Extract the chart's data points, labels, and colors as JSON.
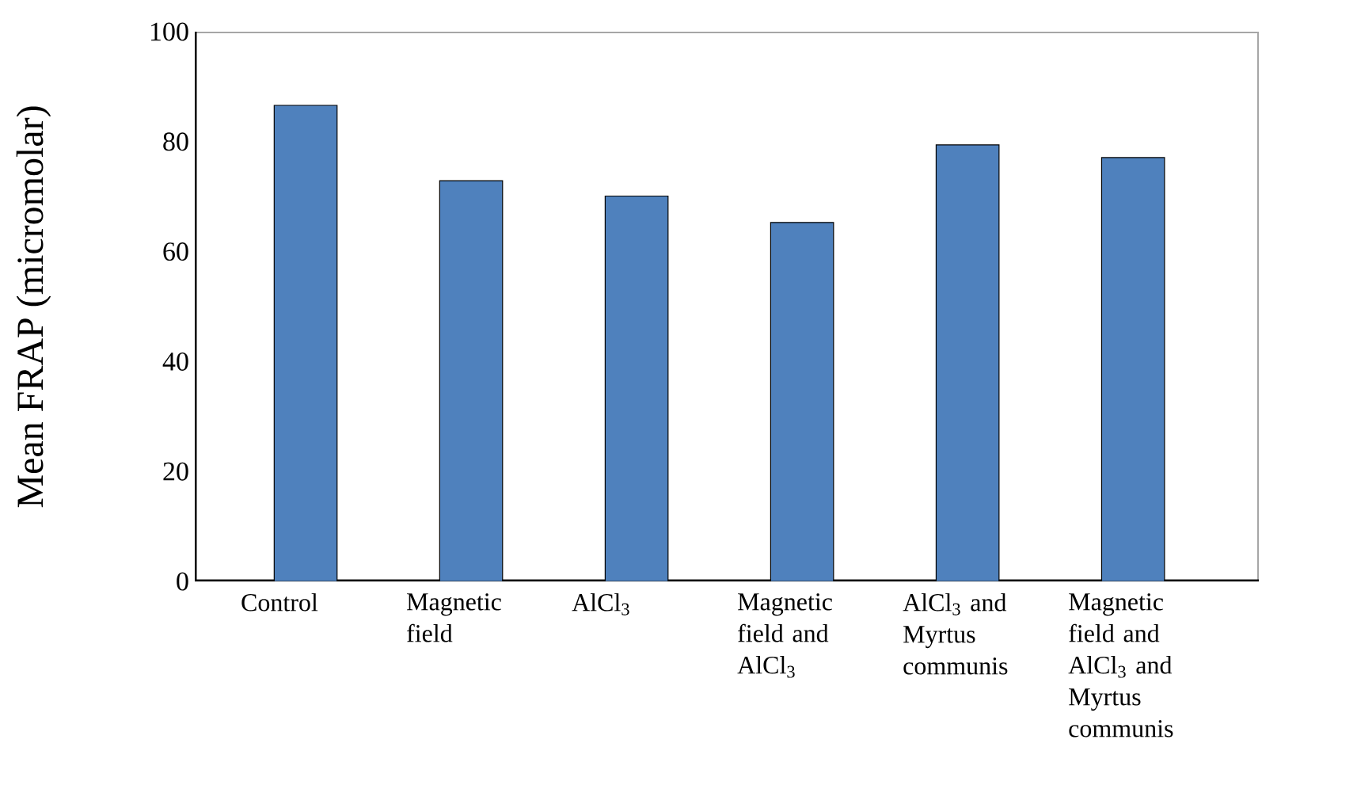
{
  "chart_data": {
    "type": "bar",
    "ylabel": "Mean FRAP (micromolar)",
    "categories": [
      "Control",
      "Magnetic field",
      "AlCl$_{3}$",
      "Magnetic field and AlCl$_{3}$",
      "AlCl$_{3}$ and Myrtus communis",
      "Magnetic field and AlCl$_{3}$ and Myrtus communis"
    ],
    "values": [
      86.6,
      72.9,
      70.1,
      65.3,
      79.4,
      77.1
    ],
    "color": "#4f81bd",
    "ylim": [
      0,
      100
    ],
    "yticks": [
      0,
      20,
      40,
      60,
      80,
      100
    ],
    "grid": false
  }
}
